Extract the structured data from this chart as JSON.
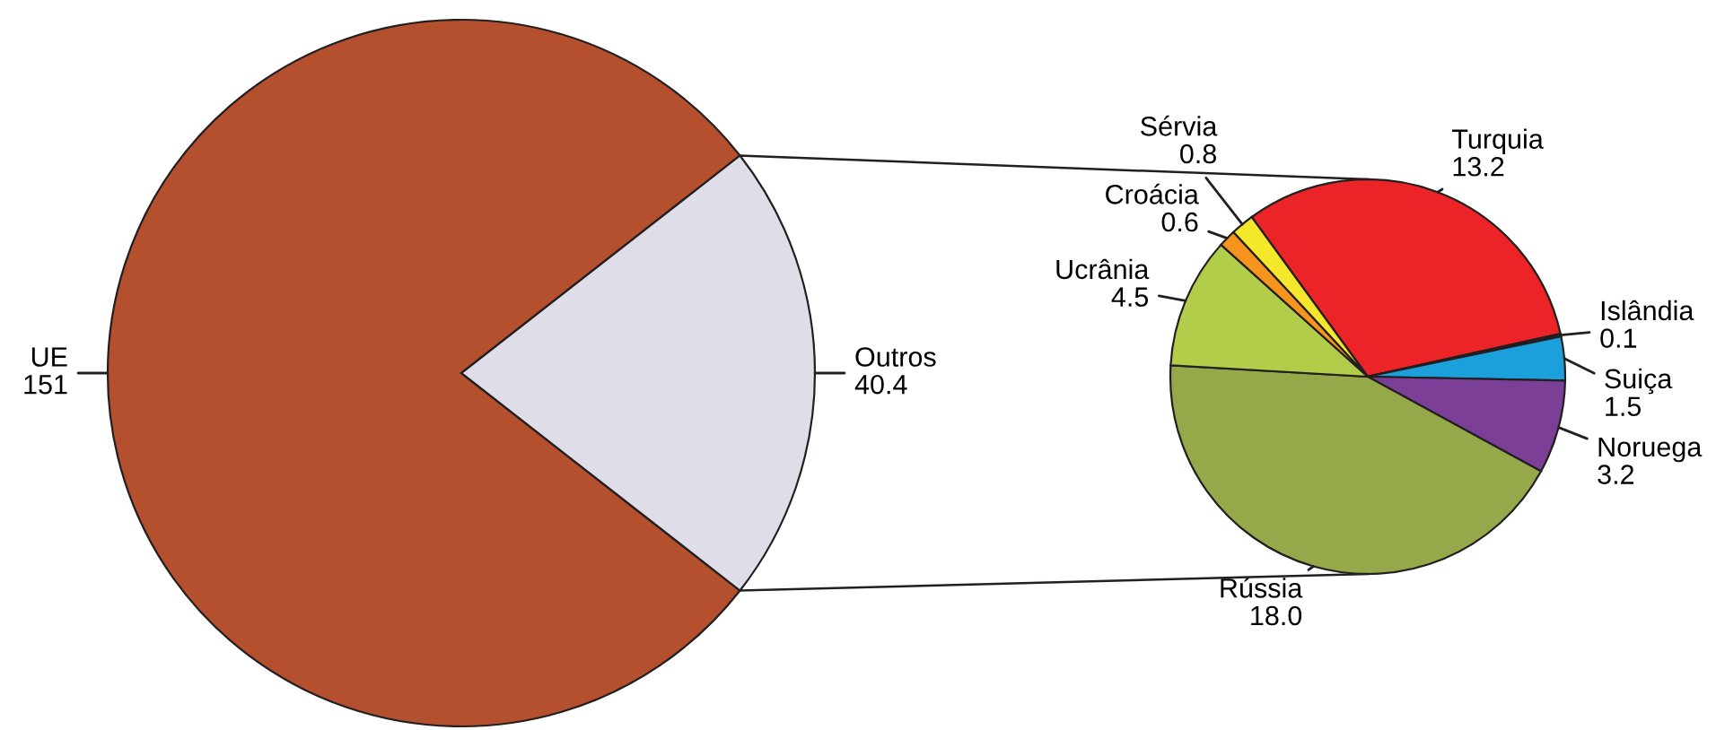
{
  "chart_data": [
    {
      "type": "pie",
      "categories": [
        "UE",
        "Outros"
      ],
      "values": [
        151,
        40.4
      ],
      "colors": [
        "#b5502f",
        "#dedde8"
      ],
      "value_labels": [
        "151",
        "40.4"
      ]
    },
    {
      "type": "pie",
      "categories": [
        "Turquia",
        "Islândia",
        "Suiça",
        "Noruega",
        "Rússia",
        "Ucrânia",
        "Croácia",
        "Sérvia"
      ],
      "values": [
        13.2,
        0.1,
        1.5,
        3.2,
        18.0,
        4.5,
        0.6,
        0.8
      ],
      "colors": [
        "#ec2327",
        "#231f20",
        "#1ba0dc",
        "#7b3f98",
        "#95a94a",
        "#b2cd4a",
        "#f7941d",
        "#f5e72a"
      ],
      "value_labels": [
        "13.2",
        "0.1",
        "1.5",
        "3.2",
        "18.0",
        "4.5",
        "0.6",
        "0.8"
      ]
    }
  ]
}
